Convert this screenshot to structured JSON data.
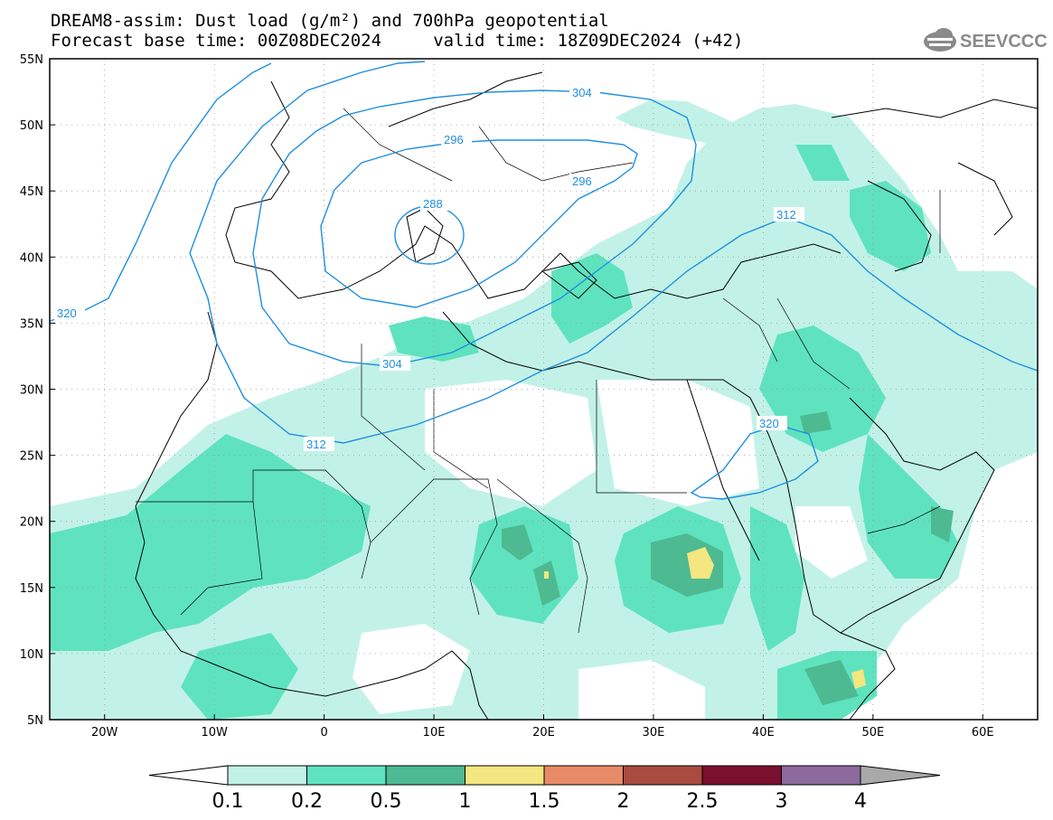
{
  "header": {
    "line1": "DREAM8-assim: Dust load (g/m²) and 700hPa geopotential",
    "line2": "Forecast base time: 00Z08DEC2024     valid time: 18Z09DEC2024 (+42)",
    "logo_text": "SEEVCCC"
  },
  "map": {
    "lon_range": [
      -25,
      65
    ],
    "lat_range": [
      5,
      55
    ],
    "lat_ticks": [
      "55N",
      "50N",
      "45N",
      "40N",
      "35N",
      "30N",
      "25N",
      "20N",
      "15N",
      "10N",
      "5N"
    ],
    "lon_ticks": [
      "20W",
      "10W",
      "0",
      "10E",
      "20E",
      "30E",
      "40E",
      "50E",
      "60E"
    ],
    "contour_labels": [
      "304",
      "296",
      "296",
      "288",
      "312",
      "320",
      "304",
      "312",
      "320"
    ],
    "contour_color": "#1f8fe0"
  },
  "colorbar": {
    "labels": [
      "0.1",
      "0.2",
      "0.5",
      "1",
      "1.5",
      "2",
      "2.5",
      "3",
      "4"
    ],
    "colors": [
      "#c2f2e7",
      "#5fe3bf",
      "#4dba91",
      "#f4e680",
      "#e88a67",
      "#a94b3f",
      "#7a0f2e",
      "#8c6a9e",
      "#a9a9a9"
    ]
  }
}
